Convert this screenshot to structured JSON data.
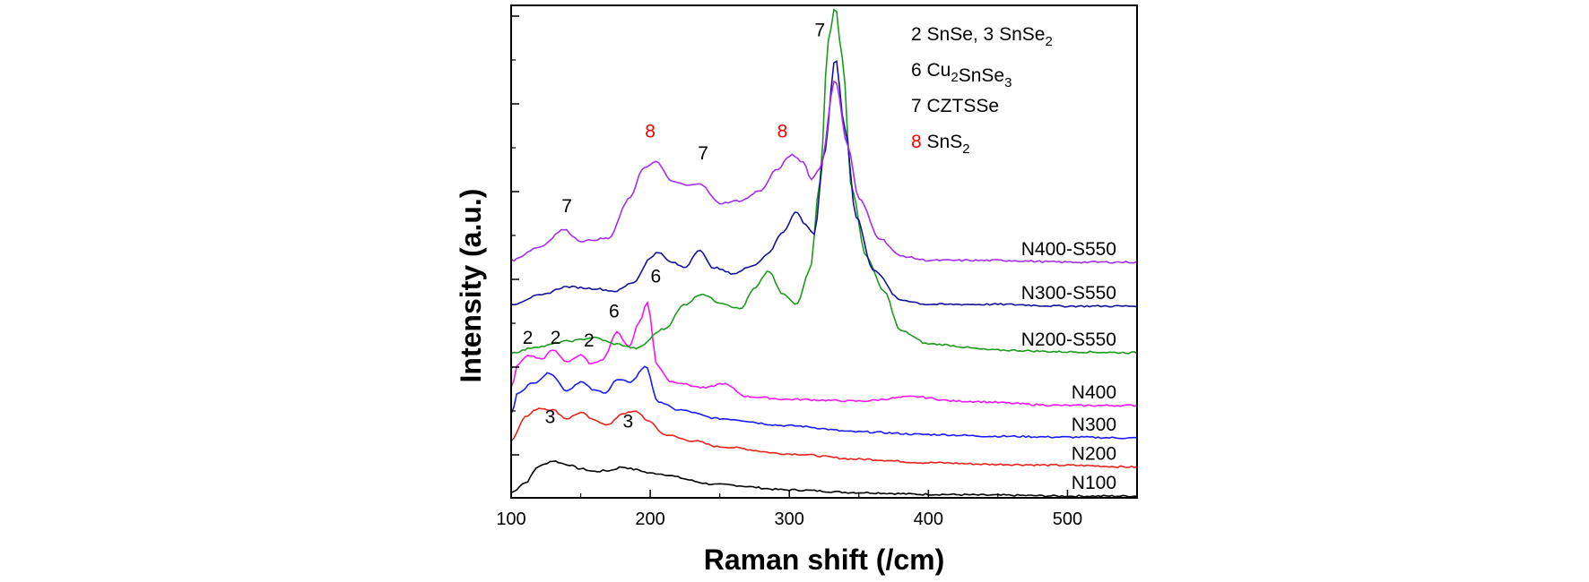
{
  "chart_data": {
    "type": "line",
    "title": "",
    "xlabel": "Raman shift (/cm)",
    "ylabel": "Intensity (a.u.)",
    "xlim": [
      100,
      550
    ],
    "ylim": [
      0,
      5.6
    ],
    "x_ticks": [
      100,
      200,
      300,
      400,
      500
    ],
    "y_ticks_labeled": false,
    "grid": false,
    "series": [
      {
        "name": "N100",
        "color": "#000000",
        "x": [
          100,
          110,
          120,
          130,
          140,
          150,
          160,
          170,
          180,
          190,
          200,
          250,
          300,
          350,
          400,
          450,
          500,
          550
        ],
        "y": [
          0.06,
          0.17,
          0.36,
          0.42,
          0.38,
          0.33,
          0.3,
          0.31,
          0.35,
          0.32,
          0.28,
          0.15,
          0.09,
          0.06,
          0.04,
          0.03,
          0.02,
          0.02
        ]
      },
      {
        "name": "N200",
        "color": "#e8231e",
        "x": [
          100,
          110,
          120,
          130,
          140,
          150,
          160,
          170,
          180,
          190,
          200,
          210,
          230,
          250,
          300,
          350,
          400,
          450,
          500,
          550
        ],
        "y": [
          0.65,
          0.92,
          1.02,
          1.0,
          0.9,
          0.97,
          0.88,
          0.83,
          0.96,
          0.98,
          0.86,
          0.72,
          0.65,
          0.58,
          0.5,
          0.44,
          0.4,
          0.38,
          0.37,
          0.35
        ]
      },
      {
        "name": "N300",
        "color": "#1a1aff",
        "x": [
          100,
          105,
          115,
          128,
          140,
          150,
          160,
          168,
          176,
          186,
          197,
          205,
          220,
          250,
          300,
          350,
          400,
          450,
          500,
          550
        ],
        "y": [
          0.95,
          1.2,
          1.3,
          1.42,
          1.22,
          1.32,
          1.22,
          1.2,
          1.34,
          1.32,
          1.5,
          1.1,
          1.0,
          0.9,
          0.82,
          0.75,
          0.72,
          0.7,
          0.69,
          0.68
        ]
      },
      {
        "name": "N400",
        "color": "#f216f2",
        "x": [
          100,
          105,
          112,
          122,
          130,
          140,
          150,
          158,
          166,
          176,
          185,
          192,
          198,
          205,
          215,
          240,
          252,
          270,
          300,
          350,
          390,
          420,
          500,
          550
        ],
        "y": [
          1.25,
          1.52,
          1.62,
          1.58,
          1.68,
          1.55,
          1.62,
          1.52,
          1.58,
          1.88,
          1.72,
          2.0,
          2.22,
          1.5,
          1.32,
          1.25,
          1.3,
          1.15,
          1.12,
          1.1,
          1.15,
          1.1,
          1.05,
          1.05
        ]
      },
      {
        "name": "N200-S550",
        "color": "#1c9a1c",
        "x": [
          100,
          120,
          140,
          160,
          175,
          190,
          210,
          225,
          237,
          250,
          265,
          275,
          285,
          295,
          305,
          315,
          322,
          328,
          333,
          338,
          345,
          355,
          368,
          380,
          400,
          450,
          500,
          550
        ],
        "y": [
          1.65,
          1.72,
          1.78,
          1.82,
          1.75,
          1.7,
          1.92,
          2.2,
          2.32,
          2.22,
          2.15,
          2.38,
          2.58,
          2.32,
          2.2,
          2.6,
          3.6,
          5.2,
          5.6,
          5.0,
          3.5,
          2.75,
          2.35,
          1.9,
          1.75,
          1.68,
          1.66,
          1.65
        ]
      },
      {
        "name": "N300-S550",
        "color": "#121298",
        "x": [
          100,
          120,
          140,
          160,
          175,
          188,
          200,
          205,
          215,
          225,
          235,
          245,
          260,
          275,
          285,
          295,
          305,
          312,
          318,
          325,
          333,
          340,
          348,
          360,
          380,
          400,
          450,
          500,
          550
        ],
        "y": [
          2.2,
          2.3,
          2.4,
          2.38,
          2.35,
          2.45,
          2.72,
          2.8,
          2.68,
          2.62,
          2.82,
          2.62,
          2.55,
          2.65,
          2.78,
          3.02,
          3.25,
          3.1,
          3.0,
          3.9,
          5.0,
          4.2,
          3.2,
          2.6,
          2.25,
          2.2,
          2.2,
          2.18,
          2.18
        ]
      },
      {
        "name": "N400-S550",
        "color": "#a32df0",
        "x": [
          100,
          120,
          138,
          150,
          170,
          185,
          195,
          205,
          215,
          228,
          235,
          250,
          265,
          280,
          290,
          302,
          310,
          316,
          322,
          333,
          342,
          350,
          365,
          380,
          400,
          450,
          500,
          550
        ],
        "y": [
          2.7,
          2.85,
          3.05,
          2.92,
          2.95,
          3.4,
          3.75,
          3.82,
          3.6,
          3.55,
          3.58,
          3.35,
          3.38,
          3.5,
          3.72,
          3.9,
          3.82,
          3.62,
          3.75,
          4.75,
          4.0,
          3.4,
          2.95,
          2.75,
          2.7,
          2.7,
          2.68,
          2.68
        ]
      }
    ],
    "series_labels": [
      "N100",
      "N200",
      "N300",
      "N400",
      "N200-S550",
      "N300-S550",
      "N400-S550"
    ],
    "annotations": [
      {
        "text": "7",
        "color": "#000000",
        "at_x": 140,
        "at_y": 3.25
      },
      {
        "text": "8",
        "color": "#ff0000",
        "at_x": 200,
        "at_y": 4.1
      },
      {
        "text": "7",
        "color": "#000000",
        "at_x": 238,
        "at_y": 3.85
      },
      {
        "text": "8",
        "color": "#ff0000",
        "at_x": 295,
        "at_y": 4.1
      },
      {
        "text": "7",
        "color": "#000000",
        "at_x": 322,
        "at_y": 5.25
      },
      {
        "text": "6",
        "color": "#000000",
        "at_x": 204,
        "at_y": 2.45
      },
      {
        "text": "6",
        "color": "#000000",
        "at_x": 174,
        "at_y": 2.05
      },
      {
        "text": "2",
        "color": "#000000",
        "at_x": 112,
        "at_y": 1.75
      },
      {
        "text": "2",
        "color": "#000000",
        "at_x": 132,
        "at_y": 1.75
      },
      {
        "text": "2",
        "color": "#000000",
        "at_x": 156,
        "at_y": 1.72
      },
      {
        "text": "3",
        "color": "#000000",
        "at_x": 128,
        "at_y": 0.85
      },
      {
        "text": "3",
        "color": "#000000",
        "at_x": 184,
        "at_y": 0.8
      }
    ],
    "legend": {
      "placement": "top-right",
      "entries": [
        {
          "parts": [
            {
              "t": "2 SnSe, 3 SnSe",
              "c": "#000000"
            },
            {
              "t": "2",
              "c": "#000000",
              "sub": true
            }
          ]
        },
        {
          "parts": [
            {
              "t": "6 Cu",
              "c": "#000000"
            },
            {
              "t": "2",
              "c": "#000000",
              "sub": true
            },
            {
              "t": "SnSe",
              "c": "#000000"
            },
            {
              "t": "3",
              "c": "#000000",
              "sub": true
            }
          ]
        },
        {
          "parts": [
            {
              "t": "7 CZTSSe",
              "c": "#000000"
            }
          ]
        },
        {
          "parts": [
            {
              "t": "8",
              "c": "#ff0000"
            },
            {
              "t": " SnS",
              "c": "#000000"
            },
            {
              "t": "2",
              "c": "#000000",
              "sub": true
            }
          ]
        }
      ]
    }
  }
}
